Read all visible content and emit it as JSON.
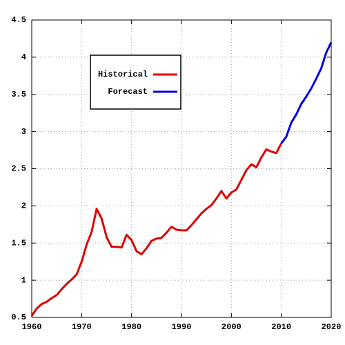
{
  "chart_data": {
    "type": "line",
    "x": [
      1960,
      1961,
      1962,
      1963,
      1964,
      1965,
      1966,
      1967,
      1968,
      1969,
      1970,
      1971,
      1972,
      1973,
      1974,
      1975,
      1976,
      1977,
      1978,
      1979,
      1980,
      1981,
      1982,
      1983,
      1984,
      1985,
      1986,
      1987,
      1988,
      1989,
      1990,
      1991,
      1992,
      1993,
      1994,
      1995,
      1996,
      1997,
      1998,
      1999,
      2000,
      2001,
      2002,
      2003,
      2004,
      2005,
      2006,
      2007,
      2008,
      2009,
      2010,
      2011,
      2012,
      2013,
      2014,
      2015,
      2016,
      2017,
      2018,
      2019,
      2020
    ],
    "series": [
      {
        "name": "Historical",
        "color": "#e00000",
        "values": [
          0.52,
          0.62,
          0.68,
          0.71,
          0.76,
          0.8,
          0.88,
          0.95,
          1.01,
          1.08,
          1.25,
          1.48,
          1.65,
          1.96,
          1.83,
          1.58,
          1.45,
          1.45,
          1.44,
          1.61,
          1.54,
          1.39,
          1.35,
          1.43,
          1.53,
          1.56,
          1.57,
          1.64,
          1.72,
          1.68,
          1.67,
          1.67,
          1.74,
          1.82,
          1.9,
          1.96,
          2.01,
          2.1,
          2.2,
          2.1,
          2.18,
          2.22,
          2.35,
          2.48,
          2.56,
          2.52,
          2.65,
          2.76,
          2.73,
          2.71,
          2.84,
          null,
          null,
          null,
          null,
          null,
          null,
          null,
          null,
          null,
          null
        ]
      },
      {
        "name": "Forecast",
        "color": "#0000e0",
        "values": [
          null,
          null,
          null,
          null,
          null,
          null,
          null,
          null,
          null,
          null,
          null,
          null,
          null,
          null,
          null,
          null,
          null,
          null,
          null,
          null,
          null,
          null,
          null,
          null,
          null,
          null,
          null,
          null,
          null,
          null,
          null,
          null,
          null,
          null,
          null,
          null,
          null,
          null,
          null,
          null,
          null,
          null,
          null,
          null,
          null,
          null,
          null,
          null,
          null,
          null,
          2.84,
          2.93,
          3.12,
          3.23,
          3.37,
          3.47,
          3.58,
          3.71,
          3.85,
          4.06,
          4.2
        ]
      }
    ],
    "xlim": [
      1960,
      2020
    ],
    "xticks": [
      1960,
      1970,
      1980,
      1990,
      2000,
      2010,
      2020
    ],
    "ylim": [
      0.5,
      4.5
    ],
    "yticks": [
      0.5,
      1,
      1.5,
      2,
      2.5,
      3,
      3.5,
      4,
      4.5
    ],
    "grid": true,
    "legend": "upper left"
  }
}
